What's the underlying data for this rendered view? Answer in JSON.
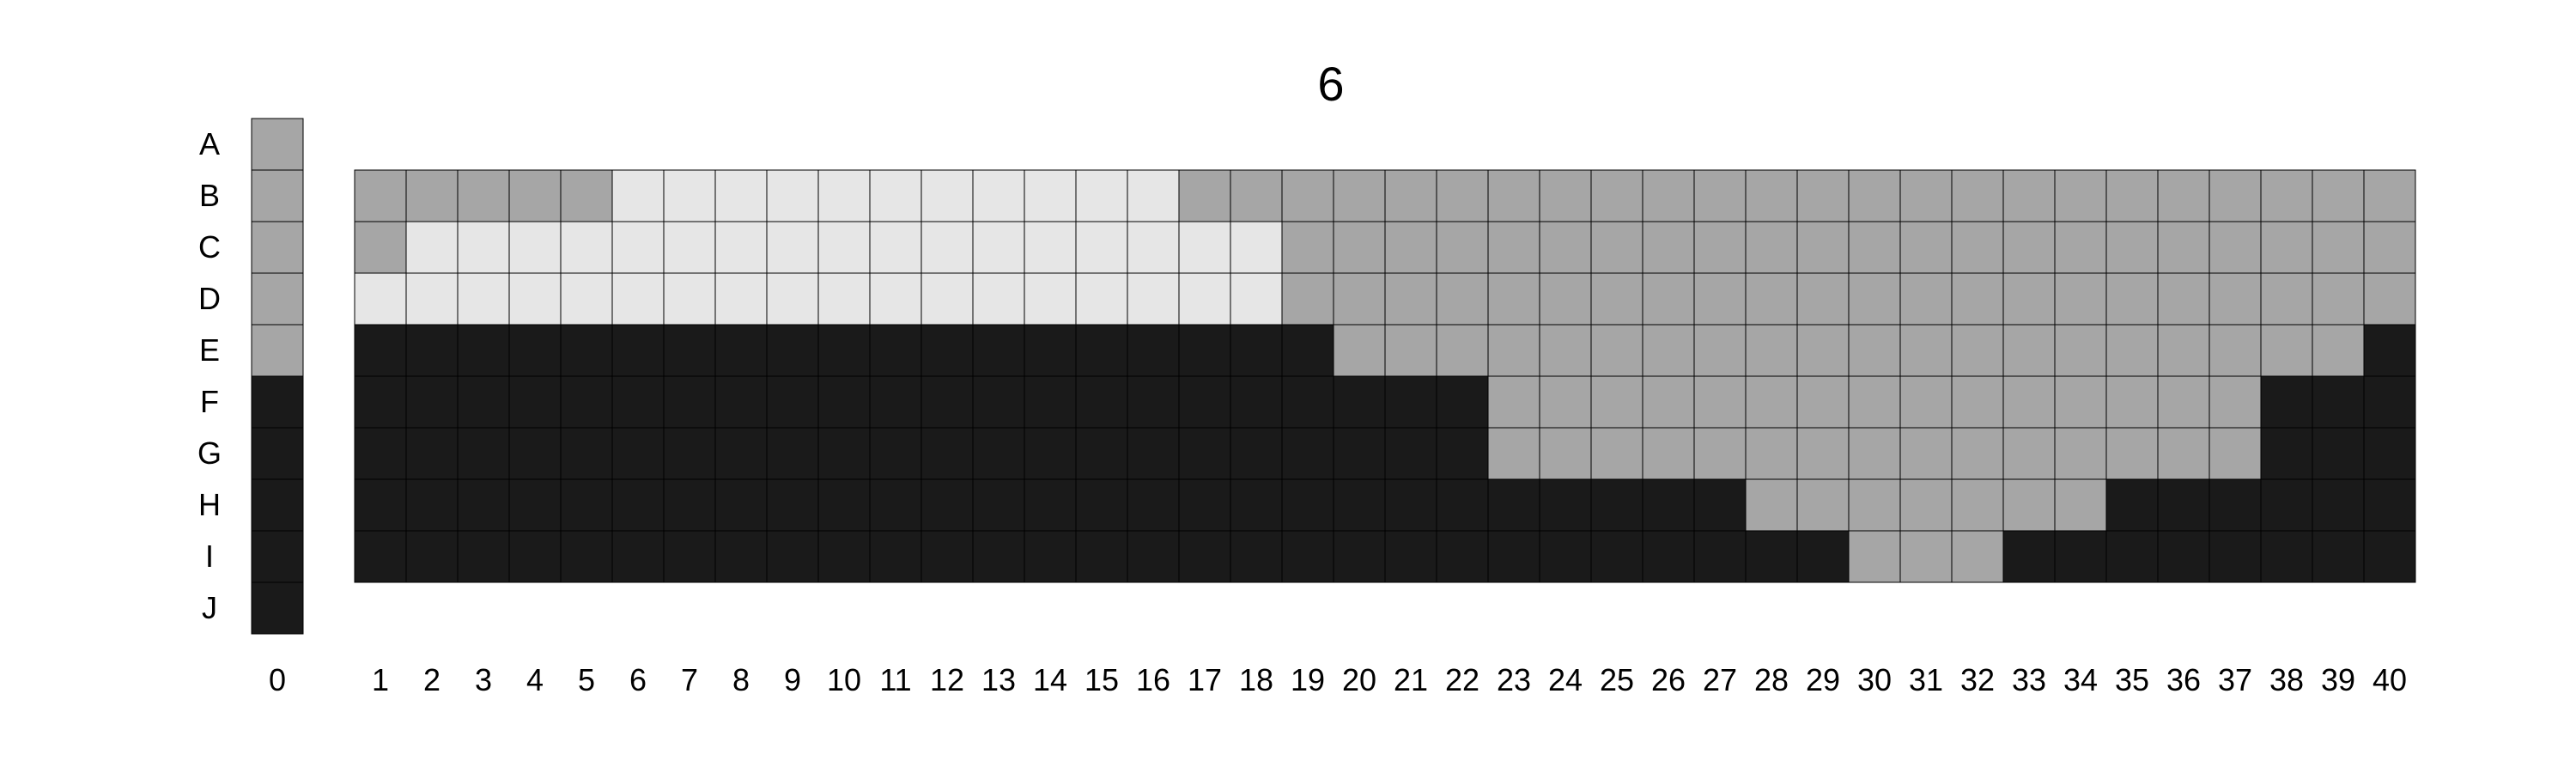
{
  "chart_data": {
    "type": "heatmap",
    "title": "6",
    "rows": [
      "A",
      "B",
      "C",
      "D",
      "E",
      "F",
      "G",
      "H",
      "I",
      "J"
    ],
    "columns": [
      "0",
      "1",
      "2",
      "3",
      "4",
      "5",
      "6",
      "7",
      "8",
      "9",
      "10",
      "11",
      "12",
      "13",
      "14",
      "15",
      "16",
      "17",
      "18",
      "19",
      "20",
      "21",
      "22",
      "23",
      "24",
      "25",
      "26",
      "27",
      "28",
      "29",
      "30",
      "31",
      "32",
      "33",
      "34",
      "35",
      "36",
      "37",
      "38",
      "39",
      "40"
    ],
    "palette": {
      "D": "#1a1a1a",
      "G": "#a6a6a6",
      "L": "#e6e6e6"
    },
    "column_0": [
      "G",
      "G",
      "G",
      "G",
      "G",
      "D",
      "D",
      "D",
      "D",
      "D"
    ],
    "grid_rows": [
      "B",
      "C",
      "D",
      "E",
      "F",
      "G",
      "H",
      "I"
    ],
    "grid": [
      "GGGGGLLLLLLLLLLLGGGGGGGGGGGGGGGGGGGGGGGG",
      "GLLLLLLLLLLLLLLLLLGGGGGGGGGGGGGGGGGGGGGG",
      "LLLLLLLLLLLLLLLLLLGGGGGGGGGGGGGGGGGGGGGG",
      "DDDDDDDDDDDDDDDDDDDGGGGGGGGGGGGGGGGGGGGD",
      "DDDDDDDDDDDDDDDDDDDDDDGGGGGGGGGGGGGGGDDD",
      "DDDDDDDDDDDDDDDDDDDDDDGGGGGGGGGGGGGGGDDD",
      "DDDDDDDDDDDDDDDDDDDDDDDDDDDGGGGGGGDDDDDD",
      "DDDDDDDDDDDDDDDDDDDDDDDDDDDDDGGGDDDDDDDD"
    ]
  }
}
